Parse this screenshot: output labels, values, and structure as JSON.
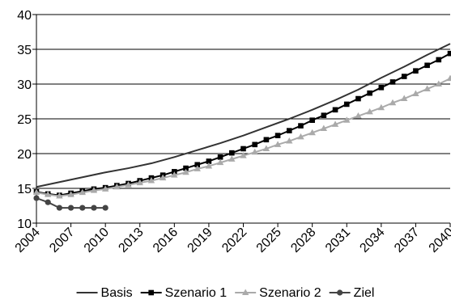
{
  "chart_data": {
    "type": "line",
    "x_tick_labels": [
      "2004",
      "2007",
      "2010",
      "2013",
      "2016",
      "2019",
      "2022",
      "2025",
      "2028",
      "2031",
      "2034",
      "2037",
      "2040"
    ],
    "y_tick_labels": [
      "10",
      "15",
      "20",
      "25",
      "30",
      "35",
      "40"
    ],
    "ylim": [
      10,
      40
    ],
    "xlim": [
      2004,
      2040
    ],
    "grid": "horizontal",
    "legend_position": "bottom",
    "series": [
      {
        "name": "Basis",
        "marker": "none",
        "color": "#333333",
        "x": [
          2004,
          2006,
          2008,
          2010,
          2012,
          2014,
          2016,
          2018,
          2020,
          2022,
          2024,
          2026,
          2028,
          2030,
          2032,
          2034,
          2036,
          2038,
          2040
        ],
        "y": [
          15.2,
          15.9,
          16.6,
          17.3,
          17.9,
          18.6,
          19.5,
          20.5,
          21.5,
          22.6,
          23.8,
          25.0,
          26.3,
          27.7,
          29.2,
          30.9,
          32.5,
          34.2,
          35.8
        ]
      },
      {
        "name": "Szenario 1",
        "marker": "square",
        "color": "#000000",
        "x": [
          2004,
          2005,
          2006,
          2007,
          2008,
          2009,
          2010,
          2011,
          2012,
          2013,
          2014,
          2015,
          2016,
          2017,
          2018,
          2019,
          2020,
          2021,
          2022,
          2023,
          2024,
          2025,
          2026,
          2027,
          2028,
          2029,
          2030,
          2031,
          2032,
          2033,
          2034,
          2035,
          2036,
          2037,
          2038,
          2039,
          2040
        ],
        "y": [
          14.5,
          14.2,
          14.0,
          14.3,
          14.6,
          14.9,
          15.1,
          15.4,
          15.7,
          16.1,
          16.5,
          16.9,
          17.4,
          17.9,
          18.4,
          18.9,
          19.5,
          20.1,
          20.7,
          21.3,
          22.0,
          22.6,
          23.3,
          24.0,
          24.8,
          25.5,
          26.3,
          27.1,
          27.9,
          28.7,
          29.5,
          30.3,
          31.1,
          31.9,
          32.7,
          33.5,
          34.4
        ]
      },
      {
        "name": "Szenario 2",
        "marker": "triangle",
        "color": "#aaaaaa",
        "x": [
          2004,
          2005,
          2006,
          2007,
          2008,
          2009,
          2010,
          2011,
          2012,
          2013,
          2014,
          2015,
          2016,
          2017,
          2018,
          2019,
          2020,
          2021,
          2022,
          2023,
          2024,
          2025,
          2026,
          2027,
          2028,
          2029,
          2030,
          2031,
          2032,
          2033,
          2034,
          2035,
          2036,
          2037,
          2038,
          2039,
          2040
        ],
        "y": [
          14.4,
          14.1,
          13.9,
          14.1,
          14.4,
          14.7,
          14.9,
          15.2,
          15.5,
          15.8,
          16.1,
          16.5,
          16.9,
          17.3,
          17.8,
          18.2,
          18.7,
          19.2,
          19.7,
          20.2,
          20.7,
          21.3,
          21.8,
          22.4,
          23.0,
          23.6,
          24.2,
          24.8,
          25.4,
          26.0,
          26.6,
          27.3,
          27.9,
          28.6,
          29.3,
          30.0,
          30.8
        ]
      },
      {
        "name": "Ziel",
        "marker": "circle",
        "color": "#444444",
        "x": [
          2004,
          2005,
          2006,
          2007,
          2008,
          2009,
          2010
        ],
        "y": [
          13.6,
          13.0,
          12.2,
          12.2,
          12.2,
          12.2,
          12.2
        ]
      }
    ]
  }
}
